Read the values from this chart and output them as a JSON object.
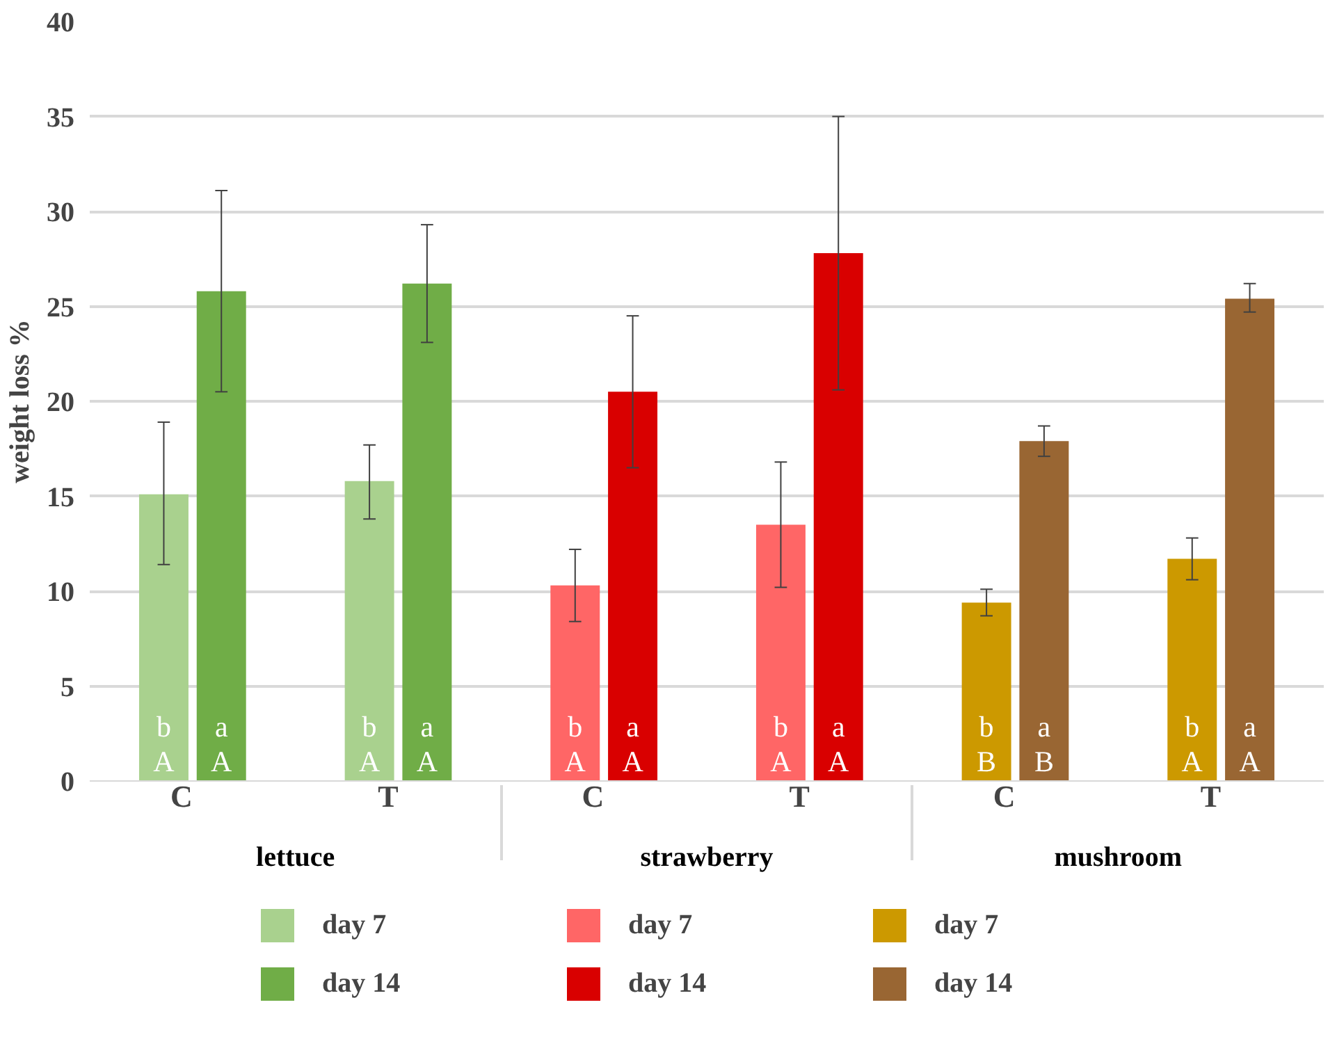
{
  "chart_data": {
    "type": "bar",
    "ylabel": "weight loss %",
    "categories": [
      "C",
      "T",
      "C",
      "T",
      "C",
      "T"
    ],
    "annotations": [
      "lettuce",
      "strawberry",
      "mushroom"
    ],
    "ylim": [
      0,
      40
    ],
    "yticks": [
      0,
      5,
      10,
      15,
      20,
      25,
      30,
      35,
      40
    ],
    "grid": "y",
    "legend": "bottom",
    "series": [
      {
        "name": "day 7",
        "color": "#a9d18e",
        "values": [
          15.1,
          15.8,
          null,
          null,
          null,
          null
        ],
        "errors": [
          [
            11.4,
            18.9
          ],
          [
            13.8,
            17.7
          ],
          null,
          null,
          null,
          null
        ],
        "value_labels": [
          "b\nA",
          "b\nA",
          null,
          null,
          null,
          null
        ]
      },
      {
        "name": "day 14",
        "color": "#70ad47",
        "values": [
          25.8,
          26.2,
          null,
          null,
          null,
          null
        ],
        "errors": [
          [
            20.5,
            31.1
          ],
          [
            23.1,
            29.3
          ],
          null,
          null,
          null,
          null
        ],
        "value_labels": [
          "a\nA",
          "a\nA",
          null,
          null,
          null,
          null
        ]
      },
      {
        "name": "day 7",
        "color": "#ff6666",
        "values": [
          null,
          null,
          10.3,
          13.5,
          null,
          null
        ],
        "errors": [
          null,
          null,
          [
            8.4,
            12.2
          ],
          [
            10.2,
            16.8
          ],
          null,
          null
        ],
        "value_labels": [
          null,
          null,
          "b\nA",
          "b\nA",
          null,
          null
        ]
      },
      {
        "name": "day 14",
        "color": "#d90000",
        "values": [
          null,
          null,
          20.5,
          27.8,
          null,
          null
        ],
        "errors": [
          null,
          null,
          [
            16.5,
            24.5
          ],
          [
            20.6,
            35.0
          ],
          null,
          null
        ],
        "value_labels": [
          null,
          null,
          "a\nA",
          "a\nA",
          null,
          null
        ]
      },
      {
        "name": "day 7",
        "color": "#cc9900",
        "values": [
          null,
          null,
          null,
          null,
          9.4,
          11.7
        ],
        "errors": [
          null,
          null,
          null,
          null,
          [
            8.7,
            10.1
          ],
          [
            10.6,
            12.8
          ]
        ],
        "value_labels": [
          null,
          null,
          null,
          null,
          "b\nB",
          "b\nA"
        ]
      },
      {
        "name": "day 14",
        "color": "#996633",
        "values": [
          null,
          null,
          null,
          null,
          17.9,
          25.4
        ],
        "errors": [
          null,
          null,
          null,
          null,
          [
            17.1,
            18.7
          ],
          [
            24.7,
            26.2
          ]
        ],
        "value_labels": [
          null,
          null,
          null,
          null,
          "a\nB",
          "a\nA"
        ]
      }
    ]
  }
}
